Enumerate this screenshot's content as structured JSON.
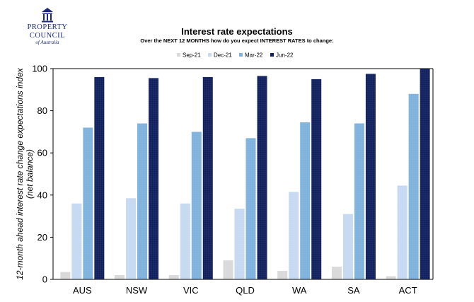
{
  "logo": {
    "line1": "PROPERTY",
    "line2": "COUNCIL",
    "line3": "of Australia"
  },
  "chart_data": {
    "type": "bar",
    "title": "Interest rate expectations",
    "subtitle": "Over the NEXT 12 MONTHS how do you expect INTEREST RATES to change:",
    "ylabel": "12-month ahead interest rate change expectations index (net balance)",
    "ylabel_lines": [
      "12-month ahead interest rate change expectations index",
      "(net balance)"
    ],
    "xlabel": "",
    "ylim": [
      0,
      100
    ],
    "yticks": [
      0,
      20,
      40,
      60,
      80,
      100
    ],
    "grid": false,
    "legend_position": "top",
    "categories": [
      "AUS",
      "NSW",
      "VIC",
      "QLD",
      "WA",
      "SA",
      "ACT"
    ],
    "series": [
      {
        "name": "Sep-21",
        "color": "#d9d9d9",
        "values": [
          3.5,
          2,
          2,
          9,
          4,
          6,
          1.5
        ]
      },
      {
        "name": "Dec-21",
        "color": "#c6d9f1",
        "values": [
          36,
          38.5,
          36,
          33.5,
          41.5,
          31,
          44.5
        ]
      },
      {
        "name": "Mar-22",
        "color": "#7fb2dc",
        "values": [
          72,
          74,
          70,
          67,
          74.5,
          74,
          88
        ]
      },
      {
        "name": "Jun-22",
        "color": "#12225e",
        "values": [
          96,
          95.5,
          96,
          96.5,
          95,
          97.5,
          100
        ]
      }
    ]
  }
}
